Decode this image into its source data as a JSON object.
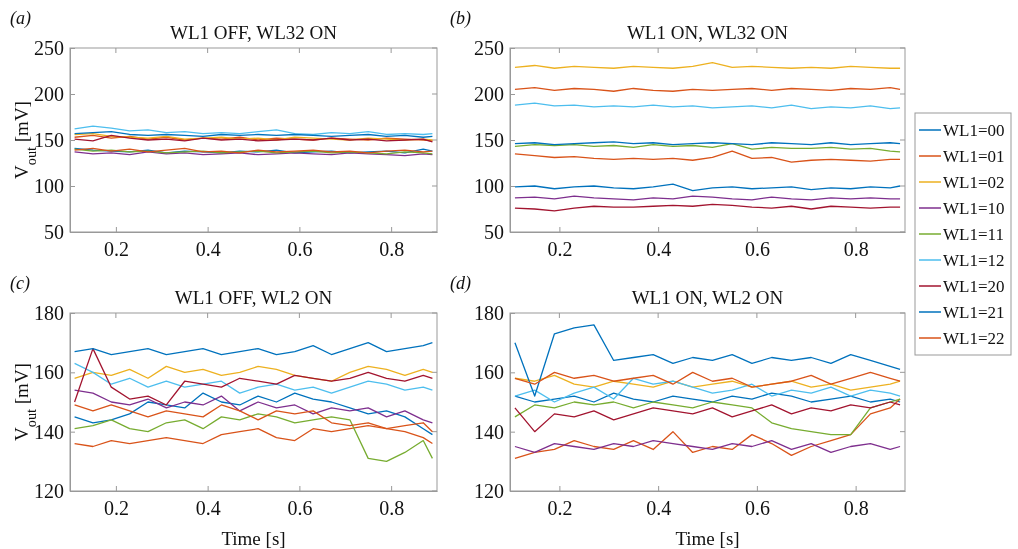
{
  "chart_data": [
    {
      "type": "line",
      "title": "WL1 OFF, WL32 ON",
      "ylabel": "V$_{out}$ [mV]",
      "annotations": [
        "(a)"
      ],
      "x": [
        0.11,
        0.15,
        0.19,
        0.23,
        0.27,
        0.31,
        0.35,
        0.39,
        0.43,
        0.47,
        0.51,
        0.55,
        0.59,
        0.63,
        0.67,
        0.71,
        0.75,
        0.79,
        0.83,
        0.87,
        0.89
      ],
      "xlim": [
        0.1,
        0.9
      ],
      "xticks": [
        0.2,
        0.4,
        0.6,
        0.8
      ],
      "ylim": [
        50,
        250
      ],
      "yticks": [
        50,
        100,
        150,
        200,
        250
      ],
      "series": [
        {
          "color": "#0072bd",
          "values": [
            141,
            139,
            138,
            137,
            139,
            136,
            138,
            137,
            136,
            138,
            137,
            139,
            136,
            137,
            138,
            136,
            137,
            138,
            136,
            140,
            138
          ]
        },
        {
          "color": "#d95319",
          "values": [
            153,
            155,
            152,
            154,
            151,
            153,
            150,
            152,
            151,
            153,
            150,
            152,
            151,
            150,
            152,
            151,
            150,
            152,
            151,
            150,
            149
          ]
        },
        {
          "color": "#edb120",
          "values": [
            156,
            157,
            154,
            153,
            152,
            154,
            151,
            152,
            153,
            151,
            152,
            150,
            153,
            152,
            151,
            150,
            152,
            151,
            150,
            151,
            150
          ]
        },
        {
          "color": "#7e2f8e",
          "values": [
            137,
            135,
            136,
            134,
            137,
            135,
            136,
            134,
            135,
            136,
            134,
            135,
            136,
            135,
            134,
            136,
            135,
            134,
            133,
            135,
            134
          ]
        },
        {
          "color": "#77ac30",
          "values": [
            140,
            138,
            139,
            137,
            138,
            136,
            137,
            138,
            136,
            137,
            138,
            136,
            137,
            138,
            136,
            137,
            136,
            135,
            137,
            136,
            135
          ]
        },
        {
          "color": "#4dbeee",
          "values": [
            162,
            165,
            163,
            160,
            161,
            158,
            159,
            157,
            158,
            157,
            159,
            161,
            157,
            156,
            158,
            157,
            159,
            156,
            157,
            156,
            157
          ]
        },
        {
          "color": "#a2142f",
          "values": [
            151,
            149,
            155,
            152,
            150,
            151,
            149,
            152,
            150,
            151,
            149,
            150,
            151,
            150,
            152,
            150,
            151,
            149,
            150,
            151,
            148
          ]
        },
        {
          "color": "#0072bd",
          "values": [
            157,
            158,
            159,
            156,
            155,
            156,
            155,
            154,
            156,
            155,
            156,
            155,
            156,
            155,
            154,
            155,
            156,
            154,
            155,
            153,
            154
          ]
        },
        {
          "color": "#d95319",
          "values": [
            139,
            141,
            138,
            140,
            137,
            139,
            141,
            137,
            138,
            136,
            139,
            137,
            138,
            139,
            137,
            138,
            136,
            138,
            139,
            137,
            138
          ]
        }
      ]
    },
    {
      "type": "line",
      "title": "WL1 ON, WL32 ON",
      "annotations": [
        "(b)"
      ],
      "legend": "right",
      "x": [
        0.11,
        0.15,
        0.19,
        0.23,
        0.27,
        0.31,
        0.35,
        0.39,
        0.43,
        0.47,
        0.51,
        0.55,
        0.59,
        0.63,
        0.67,
        0.71,
        0.75,
        0.79,
        0.83,
        0.87,
        0.89
      ],
      "xlim": [
        0.1,
        0.9
      ],
      "xticks": [
        0.2,
        0.4,
        0.6,
        0.8
      ],
      "ylim": [
        50,
        250
      ],
      "yticks": [
        50,
        100,
        150,
        200,
        250
      ],
      "series": [
        {
          "name": "WL1=00",
          "color": "#0072bd",
          "values": [
            99,
            100,
            97,
            99,
            100,
            98,
            97,
            99,
            102,
            95,
            98,
            99,
            97,
            98,
            99,
            96,
            98,
            97,
            99,
            98,
            100
          ]
        },
        {
          "name": "WL1=01",
          "color": "#d95319",
          "values": [
            205,
            207,
            204,
            206,
            205,
            203,
            206,
            204,
            203,
            205,
            204,
            205,
            206,
            204,
            206,
            205,
            204,
            206,
            205,
            207,
            205
          ]
        },
        {
          "name": "WL1=02",
          "color": "#edb120",
          "values": [
            229,
            231,
            228,
            230,
            229,
            228,
            230,
            229,
            228,
            230,
            234,
            229,
            230,
            229,
            228,
            229,
            228,
            230,
            229,
            228,
            228
          ]
        },
        {
          "name": "WL1=10",
          "color": "#7e2f8e",
          "values": [
            87,
            88,
            86,
            89,
            87,
            86,
            85,
            87,
            86,
            89,
            88,
            86,
            85,
            88,
            86,
            85,
            87,
            86,
            87,
            86,
            86
          ]
        },
        {
          "name": "WL1=11",
          "color": "#77ac30",
          "values": [
            143,
            145,
            144,
            145,
            143,
            144,
            142,
            145,
            143,
            144,
            142,
            146,
            140,
            142,
            141,
            141,
            142,
            140,
            141,
            138,
            137
          ]
        },
        {
          "name": "WL1=12",
          "color": "#4dbeee",
          "values": [
            188,
            190,
            187,
            188,
            186,
            187,
            186,
            188,
            186,
            187,
            185,
            186,
            187,
            185,
            188,
            184,
            186,
            185,
            187,
            184,
            185
          ]
        },
        {
          "name": "WL1=20",
          "color": "#a2142f",
          "values": [
            76,
            75,
            73,
            76,
            78,
            77,
            77,
            78,
            79,
            78,
            80,
            79,
            77,
            76,
            78,
            75,
            78,
            77,
            76,
            77,
            77
          ]
        },
        {
          "name": "WL1=21",
          "color": "#0072bd",
          "values": [
            146,
            147,
            145,
            146,
            147,
            148,
            146,
            147,
            145,
            146,
            147,
            146,
            145,
            147,
            146,
            145,
            147,
            145,
            146,
            147,
            146
          ]
        },
        {
          "name": "WL1=22",
          "color": "#d95319",
          "values": [
            135,
            133,
            131,
            132,
            130,
            129,
            130,
            129,
            130,
            128,
            131,
            138,
            130,
            131,
            126,
            128,
            129,
            128,
            127,
            129,
            129
          ]
        }
      ]
    },
    {
      "type": "line",
      "title": "WL1 OFF, WL2 ON",
      "ylabel": "V$_{out}$ [mV]",
      "xlabel": "Time [s]",
      "annotations": [
        "(c)"
      ],
      "x": [
        0.11,
        0.15,
        0.19,
        0.23,
        0.27,
        0.31,
        0.35,
        0.39,
        0.43,
        0.47,
        0.51,
        0.55,
        0.59,
        0.63,
        0.67,
        0.71,
        0.75,
        0.79,
        0.83,
        0.87,
        0.89
      ],
      "xlim": [
        0.1,
        0.9
      ],
      "xticks": [
        0.2,
        0.4,
        0.6,
        0.8
      ],
      "ylim": [
        120,
        180
      ],
      "yticks": [
        120,
        140,
        160,
        180
      ],
      "series": [
        {
          "color": "#0072bd",
          "values": [
            145,
            143,
            144,
            146,
            150,
            149,
            148,
            153,
            150,
            149,
            152,
            150,
            153,
            151,
            150,
            148,
            146,
            147,
            145,
            141,
            139
          ]
        },
        {
          "color": "#d95319",
          "values": [
            136,
            135,
            137,
            136,
            137,
            138,
            137,
            136,
            139,
            140,
            141,
            138,
            137,
            141,
            140,
            141,
            142,
            141,
            140,
            138,
            136
          ]
        },
        {
          "color": "#edb120",
          "values": [
            158,
            160,
            159,
            161,
            158,
            162,
            160,
            161,
            159,
            160,
            162,
            161,
            159,
            158,
            157,
            160,
            162,
            161,
            159,
            161,
            160
          ]
        },
        {
          "color": "#7e2f8e",
          "values": [
            154,
            153,
            150,
            149,
            151,
            148,
            150,
            149,
            152,
            147,
            150,
            148,
            149,
            146,
            148,
            147,
            148,
            145,
            147,
            144,
            143
          ]
        },
        {
          "color": "#77ac30",
          "values": [
            141,
            142,
            144,
            141,
            140,
            143,
            144,
            141,
            145,
            144,
            146,
            145,
            143,
            144,
            145,
            144,
            131,
            130,
            133,
            137,
            131
          ]
        },
        {
          "color": "#4dbeee",
          "values": [
            163,
            160,
            156,
            158,
            155,
            157,
            155,
            156,
            157,
            153,
            155,
            156,
            154,
            155,
            153,
            155,
            157,
            156,
            154,
            155,
            154
          ]
        },
        {
          "color": "#a2142f",
          "values": [
            150,
            168,
            155,
            151,
            152,
            149,
            157,
            156,
            155,
            158,
            157,
            156,
            159,
            158,
            157,
            158,
            160,
            158,
            157,
            159,
            158
          ]
        },
        {
          "color": "#0072bd",
          "values": [
            167,
            168,
            166,
            167,
            168,
            166,
            167,
            168,
            166,
            167,
            168,
            166,
            167,
            169,
            166,
            168,
            170,
            167,
            168,
            169,
            170
          ]
        },
        {
          "color": "#d95319",
          "values": [
            149,
            147,
            149,
            147,
            145,
            147,
            146,
            145,
            149,
            147,
            144,
            147,
            146,
            147,
            143,
            142,
            143,
            141,
            142,
            143,
            140
          ]
        }
      ]
    },
    {
      "type": "line",
      "title": "WL1 ON, WL2 ON",
      "xlabel": "Time [s]",
      "annotations": [
        "(d)"
      ],
      "x": [
        0.11,
        0.15,
        0.19,
        0.23,
        0.27,
        0.31,
        0.35,
        0.39,
        0.43,
        0.47,
        0.51,
        0.55,
        0.59,
        0.63,
        0.67,
        0.71,
        0.75,
        0.79,
        0.83,
        0.87,
        0.89
      ],
      "xlim": [
        0.1,
        0.9
      ],
      "xticks": [
        0.2,
        0.4,
        0.6,
        0.8
      ],
      "ylim": [
        120,
        180
      ],
      "yticks": [
        120,
        140,
        160,
        180
      ],
      "series": [
        {
          "color": "#0072bd",
          "values": [
            152,
            150,
            151,
            152,
            150,
            153,
            151,
            150,
            152,
            151,
            150,
            152,
            151,
            153,
            152,
            150,
            151,
            152,
            150,
            151,
            150
          ]
        },
        {
          "color": "#d95319",
          "values": [
            131,
            133,
            134,
            137,
            135,
            134,
            137,
            134,
            140,
            133,
            135,
            134,
            139,
            136,
            132,
            135,
            137,
            139,
            146,
            148,
            151
          ]
        },
        {
          "color": "#edb120",
          "values": [
            158,
            157,
            159,
            156,
            155,
            157,
            156,
            155,
            157,
            155,
            156,
            157,
            155,
            156,
            157,
            155,
            156,
            154,
            155,
            156,
            157
          ]
        },
        {
          "color": "#7e2f8e",
          "values": [
            135,
            133,
            136,
            135,
            134,
            136,
            135,
            137,
            136,
            135,
            134,
            136,
            135,
            137,
            134,
            136,
            133,
            135,
            136,
            134,
            135
          ]
        },
        {
          "color": "#77ac30",
          "values": [
            145,
            149,
            148,
            150,
            149,
            150,
            148,
            150,
            149,
            148,
            150,
            149,
            148,
            143,
            141,
            140,
            139,
            139,
            148,
            150,
            151
          ]
        },
        {
          "color": "#4dbeee",
          "values": [
            152,
            154,
            150,
            153,
            155,
            151,
            158,
            156,
            157,
            155,
            153,
            154,
            156,
            152,
            154,
            153,
            155,
            152,
            154,
            153,
            152
          ]
        },
        {
          "color": "#a2142f",
          "values": [
            148,
            140,
            146,
            145,
            147,
            144,
            146,
            148,
            147,
            146,
            148,
            145,
            147,
            149,
            146,
            148,
            147,
            149,
            148,
            150,
            149
          ]
        },
        {
          "color": "#0072bd",
          "values": [
            170,
            152,
            173,
            175,
            176,
            164,
            165,
            166,
            163,
            165,
            164,
            166,
            163,
            165,
            164,
            165,
            163,
            166,
            164,
            162,
            161
          ]
        },
        {
          "color": "#d95319",
          "values": [
            158,
            156,
            160,
            158,
            159,
            157,
            158,
            159,
            156,
            160,
            157,
            158,
            155,
            156,
            157,
            159,
            156,
            158,
            160,
            158,
            157
          ]
        }
      ]
    }
  ]
}
